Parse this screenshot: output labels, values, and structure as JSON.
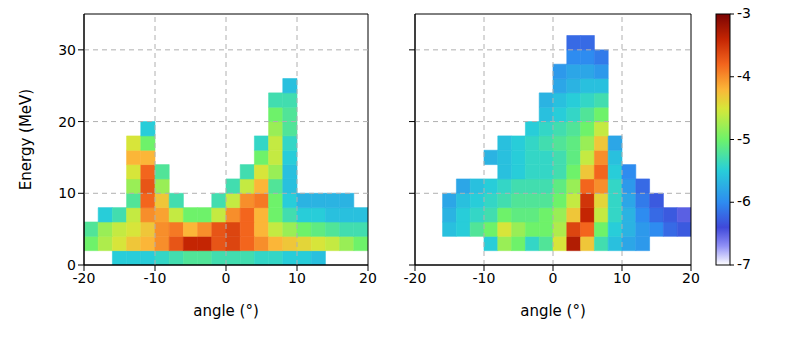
{
  "chart_data": [
    {
      "type": "heatmap",
      "x_label": "angle (°)",
      "y_label": "Energy (MeV)",
      "xlim": [
        -20,
        20
      ],
      "xticks": [
        -20,
        -10,
        0,
        10,
        20
      ],
      "ylim": [
        0,
        35
      ],
      "yticks": [
        0,
        10,
        20,
        30
      ],
      "grid": true,
      "cells": {
        "x": [
          -19,
          -17,
          -15,
          -13,
          -11,
          -9,
          -7,
          -5,
          -3,
          -1,
          1,
          3,
          5,
          7,
          9,
          11,
          13,
          15,
          17,
          19
        ],
        "y": [
          1,
          3,
          5,
          7,
          9,
          11,
          13,
          15,
          17,
          19,
          21,
          23,
          25,
          27,
          29,
          31,
          33
        ],
        "z": [
          [
            null,
            null,
            -5.5,
            -5.5,
            -5.5,
            -5.4,
            -5.3,
            -5.2,
            -5.2,
            -5.3,
            -5.3,
            -5.3,
            -5.4,
            -5.4,
            -5.5,
            -5.5,
            -5.6,
            null,
            null,
            null
          ],
          [
            -5.0,
            -4.7,
            -4.5,
            -4.3,
            -4.2,
            -4.0,
            -3.7,
            -3.4,
            -3.4,
            -3.7,
            -3.6,
            -3.8,
            -4.0,
            -4.2,
            -4.3,
            -4.4,
            -4.5,
            -4.6,
            -4.8,
            -5.0
          ],
          [
            -5.2,
            -4.8,
            -4.6,
            -4.5,
            -4.3,
            -4.0,
            -3.9,
            -4.2,
            -4.0,
            -3.7,
            -3.6,
            -3.8,
            -4.2,
            -4.6,
            -4.8,
            -5.0,
            -5.1,
            -5.2,
            -5.3,
            -5.3
          ],
          [
            null,
            -5.5,
            -5.3,
            -4.6,
            -4.0,
            -4.1,
            -4.6,
            -5.0,
            -5.0,
            -4.6,
            -4.0,
            -3.8,
            -4.2,
            -5.0,
            -5.3,
            -5.5,
            -5.5,
            -5.6,
            -5.6,
            -5.6
          ],
          [
            null,
            null,
            null,
            -5.2,
            -3.8,
            -4.3,
            -5.3,
            null,
            null,
            -5.3,
            -4.6,
            -4.0,
            -3.9,
            -5.0,
            -5.5,
            -5.7,
            -5.7,
            -5.7,
            -5.7,
            null
          ],
          [
            null,
            null,
            null,
            -4.8,
            -3.7,
            -4.8,
            null,
            null,
            null,
            null,
            -5.3,
            -4.6,
            -4.2,
            -5.2,
            -5.6,
            null,
            null,
            null,
            null,
            null
          ],
          [
            null,
            null,
            null,
            -4.5,
            -3.8,
            -5.2,
            null,
            null,
            null,
            null,
            null,
            -5.3,
            -4.5,
            -4.8,
            -5.6,
            null,
            null,
            null,
            null,
            null
          ],
          [
            null,
            null,
            null,
            -4.2,
            -4.2,
            null,
            null,
            null,
            null,
            null,
            null,
            null,
            -5.0,
            -4.6,
            -5.5,
            null,
            null,
            null,
            null,
            null
          ],
          [
            null,
            null,
            null,
            -4.5,
            -5.0,
            null,
            null,
            null,
            null,
            null,
            null,
            null,
            -5.4,
            -4.6,
            -5.4,
            null,
            null,
            null,
            null,
            null
          ],
          [
            null,
            null,
            null,
            null,
            -5.5,
            null,
            null,
            null,
            null,
            null,
            null,
            null,
            null,
            -4.8,
            -5.2,
            null,
            null,
            null,
            null,
            null
          ],
          [
            null,
            null,
            null,
            null,
            null,
            null,
            null,
            null,
            null,
            null,
            null,
            null,
            null,
            -5.0,
            -5.2,
            null,
            null,
            null,
            null,
            null
          ],
          [
            null,
            null,
            null,
            null,
            null,
            null,
            null,
            null,
            null,
            null,
            null,
            null,
            null,
            -5.3,
            -5.3,
            null,
            null,
            null,
            null,
            null
          ],
          [
            null,
            null,
            null,
            null,
            null,
            null,
            null,
            null,
            null,
            null,
            null,
            null,
            null,
            null,
            -5.6,
            null,
            null,
            null,
            null,
            null
          ],
          [
            null,
            null,
            null,
            null,
            null,
            null,
            null,
            null,
            null,
            null,
            null,
            null,
            null,
            null,
            null,
            null,
            null,
            null,
            null,
            null
          ],
          [
            null,
            null,
            null,
            null,
            null,
            null,
            null,
            null,
            null,
            null,
            null,
            null,
            null,
            null,
            null,
            null,
            null,
            null,
            null,
            null
          ],
          [
            null,
            null,
            null,
            null,
            null,
            null,
            null,
            null,
            null,
            null,
            null,
            null,
            null,
            null,
            null,
            null,
            null,
            null,
            null,
            null
          ],
          [
            null,
            null,
            null,
            null,
            null,
            null,
            null,
            null,
            null,
            null,
            null,
            null,
            null,
            null,
            null,
            null,
            null,
            null,
            null,
            null
          ]
        ]
      }
    },
    {
      "type": "heatmap",
      "x_label": "angle (°)",
      "xlim": [
        -20,
        20
      ],
      "xticks": [
        -20,
        -10,
        0,
        10,
        20
      ],
      "ylim": [
        0,
        35
      ],
      "yticks": [
        0,
        10,
        20,
        30
      ],
      "grid": true,
      "tick_labels": "x",
      "cells": {
        "x": [
          -19,
          -17,
          -15,
          -13,
          -11,
          -9,
          -7,
          -5,
          -3,
          -1,
          1,
          3,
          5,
          7,
          9,
          11,
          13,
          15,
          17,
          19
        ],
        "y": [
          1,
          3,
          5,
          7,
          9,
          11,
          13,
          15,
          17,
          19,
          21,
          23,
          25,
          27,
          29,
          31,
          33
        ],
        "z": [
          [
            null,
            null,
            null,
            null,
            null,
            null,
            null,
            null,
            null,
            null,
            null,
            null,
            null,
            null,
            null,
            null,
            null,
            null,
            null,
            null
          ],
          [
            null,
            null,
            null,
            null,
            null,
            -5.5,
            -4.8,
            -5.0,
            -5.4,
            -5.2,
            -4.5,
            -3.3,
            -4.3,
            -5.3,
            -5.6,
            -5.8,
            -5.9,
            null,
            null,
            null
          ],
          [
            null,
            null,
            -5.6,
            -5.5,
            -5.2,
            -5.0,
            -4.5,
            -4.8,
            -5.0,
            -5.0,
            -4.7,
            -3.6,
            -3.8,
            -5.0,
            -5.5,
            -5.7,
            -5.9,
            -6.0,
            -6.2,
            -6.3
          ],
          [
            null,
            null,
            -5.7,
            -5.5,
            -5.4,
            -5.3,
            -5.0,
            -5.1,
            -5.1,
            -5.0,
            -4.8,
            -4.3,
            -3.4,
            -4.6,
            -5.4,
            -5.7,
            -6.0,
            -6.2,
            -6.3,
            -6.5
          ],
          [
            null,
            null,
            -5.8,
            -5.6,
            -5.5,
            -5.4,
            -5.3,
            -5.2,
            -5.2,
            -5.2,
            -5.0,
            -4.6,
            -3.5,
            -4.4,
            -5.4,
            -5.8,
            -6.1,
            -6.3,
            null,
            null
          ],
          [
            null,
            null,
            null,
            -5.8,
            -5.6,
            -5.5,
            -5.4,
            -5.3,
            -5.3,
            -5.3,
            -5.1,
            -4.8,
            -3.8,
            -4.0,
            -5.4,
            -5.9,
            -6.2,
            null,
            null,
            null
          ],
          [
            null,
            null,
            null,
            null,
            null,
            null,
            -5.6,
            -5.5,
            -5.4,
            -5.4,
            -5.3,
            -5.0,
            -4.3,
            -3.8,
            -5.5,
            -6.0,
            null,
            null,
            null,
            null
          ],
          [
            null,
            null,
            null,
            null,
            null,
            -5.7,
            -5.6,
            -5.5,
            -5.4,
            -5.4,
            -5.3,
            -5.1,
            -4.6,
            -4.0,
            -5.6,
            null,
            null,
            null,
            null,
            null
          ],
          [
            null,
            null,
            null,
            null,
            null,
            null,
            -5.6,
            -5.5,
            -5.4,
            -5.3,
            -5.2,
            -5.1,
            -4.8,
            -4.3,
            -5.8,
            null,
            null,
            null,
            null,
            null
          ],
          [
            null,
            null,
            null,
            null,
            null,
            null,
            null,
            null,
            -5.5,
            -5.4,
            -5.3,
            -5.2,
            -5.0,
            -4.6,
            null,
            null,
            null,
            null,
            null,
            null
          ],
          [
            null,
            null,
            null,
            null,
            null,
            null,
            null,
            null,
            null,
            -5.6,
            -5.5,
            -5.4,
            -5.2,
            -5.0,
            null,
            null,
            null,
            null,
            null,
            null
          ],
          [
            null,
            null,
            null,
            null,
            null,
            null,
            null,
            null,
            null,
            -5.7,
            -5.6,
            -5.5,
            -5.4,
            -5.3,
            null,
            null,
            null,
            null,
            null,
            null
          ],
          [
            null,
            null,
            null,
            null,
            null,
            null,
            null,
            null,
            null,
            null,
            -5.8,
            -5.7,
            -5.6,
            -5.6,
            null,
            null,
            null,
            null,
            null,
            null
          ],
          [
            null,
            null,
            null,
            null,
            null,
            null,
            null,
            null,
            null,
            null,
            -5.9,
            -5.8,
            -5.8,
            -5.9,
            null,
            null,
            null,
            null,
            null,
            null
          ],
          [
            null,
            null,
            null,
            null,
            null,
            null,
            null,
            null,
            null,
            null,
            null,
            -6.0,
            -6.0,
            -6.1,
            null,
            null,
            null,
            null,
            null,
            null
          ],
          [
            null,
            null,
            null,
            null,
            null,
            null,
            null,
            null,
            null,
            null,
            null,
            -6.2,
            -6.2,
            null,
            null,
            null,
            null,
            null,
            null,
            null
          ],
          [
            null,
            null,
            null,
            null,
            null,
            null,
            null,
            null,
            null,
            null,
            null,
            null,
            null,
            null,
            null,
            null,
            null,
            null,
            null,
            null
          ]
        ]
      },
      "colorbar": {
        "range": [
          -7,
          -3
        ],
        "ticks": [
          -7,
          -6,
          -5,
          -4,
          -3
        ]
      }
    }
  ]
}
